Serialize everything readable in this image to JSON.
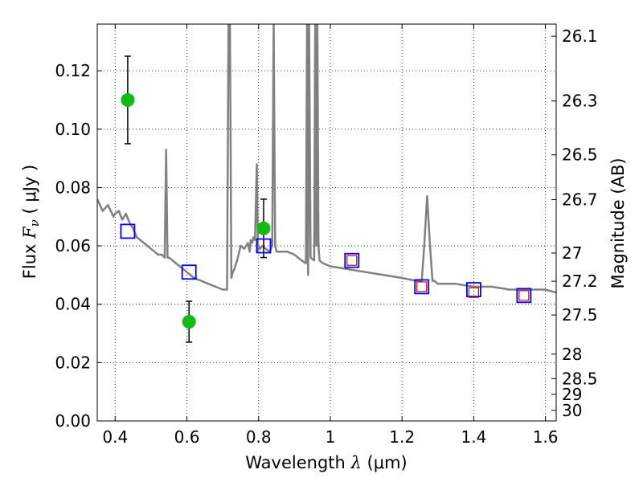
{
  "chart_data": {
    "type": "scatter",
    "xlabel_text": "Wavelength",
    "xlabel_symbol": "λ",
    "xlabel_unit": "(μm)",
    "ylabel_text": "Flux",
    "ylabel_symbol": "F",
    "ylabel_sub": "ν",
    "ylabel_unit": "( μJy )",
    "y2label": "Magnitude (AB)",
    "xlim": [
      0.35,
      1.63
    ],
    "ylim": [
      0.0,
      0.136
    ],
    "grid": true,
    "x_ticks": [
      {
        "value": 0.4,
        "label": "0.4"
      },
      {
        "value": 0.6,
        "label": "0.6"
      },
      {
        "value": 0.8,
        "label": "0.8"
      },
      {
        "value": 1.0,
        "label": "1"
      },
      {
        "value": 1.2,
        "label": "1.2"
      },
      {
        "value": 1.4,
        "label": "1.4"
      },
      {
        "value": 1.6,
        "label": "1.6"
      }
    ],
    "y_ticks": [
      {
        "value": 0.0,
        "label": "0.00"
      },
      {
        "value": 0.02,
        "label": "0.02"
      },
      {
        "value": 0.04,
        "label": "0.04"
      },
      {
        "value": 0.06,
        "label": "0.06"
      },
      {
        "value": 0.08,
        "label": "0.08"
      },
      {
        "value": 0.1,
        "label": "0.10"
      },
      {
        "value": 0.12,
        "label": "0.12"
      }
    ],
    "y2_ticks": [
      {
        "mag": 26.1,
        "label": "26.1"
      },
      {
        "mag": 26.3,
        "label": "26.3"
      },
      {
        "mag": 26.5,
        "label": "26.5"
      },
      {
        "mag": 26.7,
        "label": "26.7"
      },
      {
        "mag": 27.0,
        "label": "27"
      },
      {
        "mag": 27.2,
        "label": "27.2"
      },
      {
        "mag": 27.5,
        "label": "27.5"
      },
      {
        "mag": 28.0,
        "label": "28"
      },
      {
        "mag": 28.5,
        "label": "28.5"
      },
      {
        "mag": 29.0,
        "label": "29"
      },
      {
        "mag": 30.0,
        "label": "30"
      }
    ],
    "series": [
      {
        "kind": "line",
        "color": "#808080",
        "x": [
          0.35,
          0.365,
          0.38,
          0.395,
          0.4,
          0.41,
          0.42,
          0.43,
          0.44,
          0.45,
          0.46,
          0.47,
          0.48,
          0.49,
          0.5,
          0.51,
          0.52,
          0.53,
          0.538,
          0.542,
          0.546,
          0.55,
          0.56,
          0.57,
          0.58,
          0.59,
          0.6,
          0.62,
          0.64,
          0.66,
          0.68,
          0.7,
          0.712,
          0.716,
          0.72,
          0.724,
          0.728,
          0.732,
          0.74,
          0.75,
          0.76,
          0.77,
          0.775,
          0.778,
          0.782,
          0.786,
          0.79,
          0.795,
          0.798,
          0.8,
          0.804,
          0.81,
          0.82,
          0.83,
          0.838,
          0.842,
          0.846,
          0.85,
          0.86,
          0.88,
          0.9,
          0.91,
          0.92,
          0.932,
          0.935,
          0.938,
          0.941,
          0.945,
          0.955,
          0.958,
          0.961,
          0.964,
          0.967,
          0.97,
          0.98,
          1.0,
          1.05,
          1.1,
          1.15,
          1.2,
          1.24,
          1.255,
          1.262,
          1.27,
          1.278,
          1.285,
          1.29,
          1.3,
          1.35,
          1.4,
          1.45,
          1.5,
          1.55,
          1.6,
          1.63
        ],
        "y": [
          0.076,
          0.072,
          0.074,
          0.07,
          0.071,
          0.072,
          0.069,
          0.071,
          0.068,
          0.066,
          0.063,
          0.062,
          0.061,
          0.06,
          0.059,
          0.058,
          0.057,
          0.057,
          0.056,
          0.093,
          0.056,
          0.056,
          0.055,
          0.054,
          0.053,
          0.052,
          0.051,
          0.049,
          0.048,
          0.047,
          0.046,
          0.045,
          0.045,
          0.136,
          0.136,
          0.049,
          0.051,
          0.052,
          0.055,
          0.06,
          0.059,
          0.061,
          0.058,
          0.062,
          0.061,
          0.063,
          0.062,
          0.088,
          0.058,
          0.06,
          0.059,
          0.06,
          0.059,
          0.058,
          0.06,
          0.136,
          0.06,
          0.058,
          0.058,
          0.058,
          0.057,
          0.056,
          0.055,
          0.054,
          0.136,
          0.05,
          0.136,
          0.056,
          0.055,
          0.136,
          0.06,
          0.136,
          0.06,
          0.055,
          0.054,
          0.053,
          0.052,
          0.051,
          0.05,
          0.049,
          0.048,
          0.048,
          0.06,
          0.077,
          0.06,
          0.048,
          0.048,
          0.047,
          0.047,
          0.046,
          0.046,
          0.045,
          0.045,
          0.045,
          0.044
        ]
      },
      {
        "kind": "scatter-circle-errorbar",
        "color": "#11bb11",
        "x": [
          0.435,
          0.606,
          0.814
        ],
        "y": [
          0.11,
          0.034,
          0.066
        ],
        "yerr": [
          0.015,
          0.007,
          0.01
        ]
      },
      {
        "kind": "scatter-square-open",
        "color": "#0000ff",
        "x": [
          0.435,
          0.606,
          0.814,
          1.06,
          1.255,
          1.4,
          1.54
        ],
        "y": [
          0.065,
          0.051,
          0.06,
          0.055,
          0.046,
          0.045,
          0.043
        ]
      },
      {
        "kind": "scatter-square-open-small",
        "color": "#dd0000",
        "x": [
          1.06,
          1.255,
          1.4,
          1.54
        ],
        "y": [
          0.055,
          0.046,
          0.044,
          0.043
        ]
      }
    ]
  }
}
